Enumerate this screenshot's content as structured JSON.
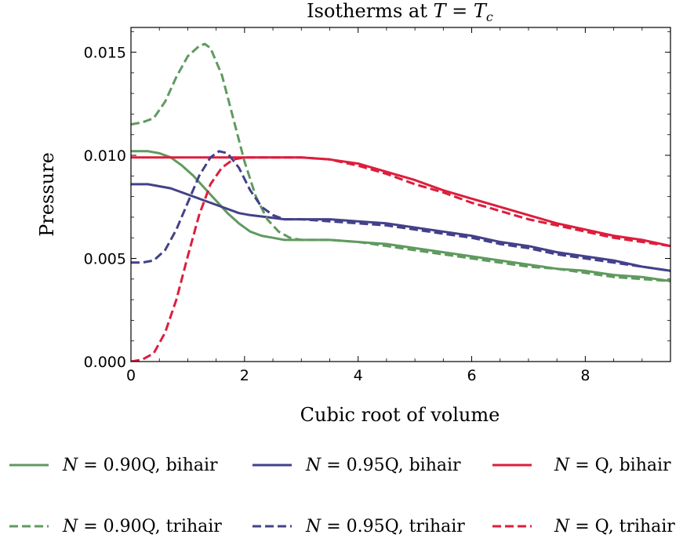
{
  "chart_data": {
    "type": "line",
    "title": "Isotherms at T = T_c",
    "xlabel": "Cubic root of volume",
    "ylabel": "Pressure",
    "xlim": [
      0,
      9.5
    ],
    "ylim": [
      0,
      0.0162
    ],
    "xticks": [
      0,
      2,
      4,
      6,
      8
    ],
    "xtick_labels": [
      "0",
      "2",
      "4",
      "6",
      "8"
    ],
    "yticks": [
      0,
      0.005,
      0.01,
      0.015
    ],
    "ytick_labels": [
      "0.000",
      "0.005",
      "0.010",
      "0.015"
    ],
    "grid": false,
    "legend_position": "bottom",
    "series": [
      {
        "name": "N = 0.90Q, bihair",
        "color": "#5f9a5f",
        "style": "solid",
        "x": [
          0,
          0.3,
          0.5,
          0.7,
          0.9,
          1.1,
          1.3,
          1.5,
          1.7,
          1.9,
          2.1,
          2.3,
          2.5,
          2.7,
          3.0,
          3.5,
          4.0,
          4.5,
          5.0,
          5.5,
          6.0,
          6.5,
          7.0,
          7.5,
          8.0,
          8.5,
          9.0,
          9.5
        ],
        "y": [
          0.0102,
          0.0102,
          0.0101,
          0.0099,
          0.0095,
          0.009,
          0.0084,
          0.0078,
          0.0072,
          0.0067,
          0.0063,
          0.0061,
          0.006,
          0.0059,
          0.0059,
          0.0059,
          0.0058,
          0.0057,
          0.0055,
          0.0053,
          0.0051,
          0.0049,
          0.0047,
          0.0045,
          0.0044,
          0.0042,
          0.0041,
          0.0039
        ]
      },
      {
        "name": "N = 0.95Q, bihair",
        "color": "#43418a",
        "style": "solid",
        "x": [
          0,
          0.3,
          0.5,
          0.7,
          0.9,
          1.1,
          1.3,
          1.5,
          1.7,
          1.9,
          2.1,
          2.4,
          2.7,
          3.0,
          3.5,
          4.0,
          4.5,
          5.0,
          5.5,
          6.0,
          6.5,
          7.0,
          7.5,
          8.0,
          8.5,
          9.0,
          9.5
        ],
        "y": [
          0.0086,
          0.0086,
          0.0085,
          0.0084,
          0.0082,
          0.008,
          0.0078,
          0.0076,
          0.0074,
          0.0072,
          0.0071,
          0.007,
          0.0069,
          0.0069,
          0.0069,
          0.0068,
          0.0067,
          0.0065,
          0.0063,
          0.0061,
          0.0058,
          0.0056,
          0.0053,
          0.0051,
          0.0049,
          0.0046,
          0.0044
        ]
      },
      {
        "name": "N = Q, bihair",
        "color": "#dc1e3c",
        "style": "solid",
        "x": [
          0,
          0.5,
          1.0,
          1.5,
          2.0,
          2.5,
          3.0,
          3.5,
          4.0,
          4.5,
          5.0,
          5.5,
          6.0,
          6.5,
          7.0,
          7.5,
          8.0,
          8.5,
          9.0,
          9.5
        ],
        "y": [
          0.0099,
          0.0099,
          0.0099,
          0.0099,
          0.0099,
          0.0099,
          0.0099,
          0.0098,
          0.0096,
          0.0092,
          0.0088,
          0.0083,
          0.0079,
          0.0075,
          0.0071,
          0.0067,
          0.0064,
          0.0061,
          0.0059,
          0.0056
        ]
      },
      {
        "name": "N = 0.90Q, trihair",
        "color": "#5f9a5f",
        "style": "dashed",
        "x": [
          0,
          0.2,
          0.4,
          0.6,
          0.8,
          1.0,
          1.2,
          1.3,
          1.4,
          1.6,
          1.8,
          2.0,
          2.2,
          2.4,
          2.6,
          2.8,
          3.0,
          3.5,
          4.0,
          4.5,
          5.0,
          5.5,
          6.0,
          6.5,
          7.0,
          7.5,
          8.0,
          8.5,
          9.0,
          9.5
        ],
        "y": [
          0.0115,
          0.0116,
          0.0118,
          0.0126,
          0.0138,
          0.0148,
          0.0153,
          0.0154,
          0.0152,
          0.0139,
          0.0118,
          0.0097,
          0.008,
          0.0069,
          0.0063,
          0.006,
          0.0059,
          0.0059,
          0.0058,
          0.0056,
          0.0054,
          0.0052,
          0.005,
          0.0048,
          0.0046,
          0.0045,
          0.0043,
          0.0041,
          0.004,
          0.0039
        ]
      },
      {
        "name": "N = 0.95Q, trihair",
        "color": "#43418a",
        "style": "dashed",
        "x": [
          0,
          0.2,
          0.4,
          0.6,
          0.8,
          1.0,
          1.2,
          1.4,
          1.55,
          1.7,
          1.9,
          2.1,
          2.3,
          2.5,
          2.7,
          3.0,
          3.5,
          4.0,
          4.5,
          5.0,
          5.5,
          6.0,
          6.5,
          7.0,
          7.5,
          8.0,
          8.5,
          9.0,
          9.5
        ],
        "y": [
          0.0048,
          0.0048,
          0.0049,
          0.0054,
          0.0064,
          0.0077,
          0.009,
          0.0099,
          0.0102,
          0.0101,
          0.0094,
          0.0083,
          0.0075,
          0.0071,
          0.0069,
          0.0069,
          0.0068,
          0.0067,
          0.0066,
          0.0064,
          0.0062,
          0.006,
          0.0057,
          0.0055,
          0.0052,
          0.005,
          0.0048,
          0.0046,
          0.0044
        ]
      },
      {
        "name": "N = Q, trihair",
        "color": "#dc1e3c",
        "style": "dashed",
        "x": [
          0,
          0.2,
          0.4,
          0.6,
          0.8,
          1.0,
          1.2,
          1.4,
          1.6,
          1.8,
          2.0,
          2.2,
          2.5,
          3.0,
          3.5,
          4.0,
          4.5,
          5.0,
          5.5,
          6.0,
          6.5,
          7.0,
          7.5,
          8.0,
          8.5,
          9.0,
          9.5
        ],
        "y": [
          0.0,
          0.0001,
          0.0004,
          0.0014,
          0.003,
          0.0051,
          0.0071,
          0.0086,
          0.0094,
          0.0098,
          0.0099,
          0.0099,
          0.0099,
          0.0099,
          0.0098,
          0.0095,
          0.0091,
          0.0086,
          0.0082,
          0.0077,
          0.0073,
          0.0069,
          0.0066,
          0.0063,
          0.006,
          0.0058,
          0.0056
        ]
      }
    ]
  }
}
